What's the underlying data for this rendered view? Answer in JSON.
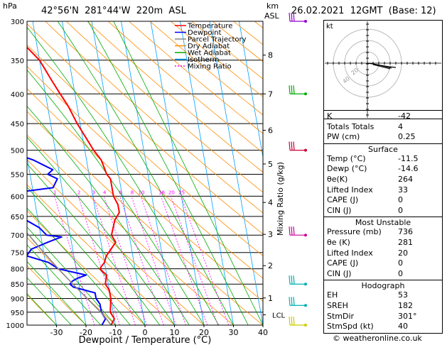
{
  "header": {
    "hpa_label": "hPa",
    "location": "42°56'N  281°44'W  220m  ASL",
    "km_label": "km",
    "asl_label": "ASL",
    "datetime": "26.02.2021  12GMT  (Base: 12)"
  },
  "legend": {
    "items": [
      {
        "label": "Temperature",
        "color": "#ff0000",
        "dash": "none"
      },
      {
        "label": "Dewpoint",
        "color": "#0000ff",
        "dash": "none"
      },
      {
        "label": "Parcel Trajectory",
        "color": "#888888",
        "dash": "none"
      },
      {
        "label": "Dry Adiabat",
        "color": "#ff8c00",
        "dash": "none"
      },
      {
        "label": "Wet Adiabat",
        "color": "#00aa00",
        "dash": "none"
      },
      {
        "label": "Isotherm",
        "color": "#00a0ff",
        "dash": "none"
      },
      {
        "label": "Mixing Ratio",
        "color": "#ff00ff",
        "dash": "2,2"
      }
    ]
  },
  "hodograph": {
    "kt_label": "kt",
    "ring_labels": [
      "20",
      "40"
    ]
  },
  "indices": {
    "top": [
      {
        "label": "K",
        "value": "-42"
      },
      {
        "label": "Totals Totals",
        "value": "4"
      },
      {
        "label": "PW (cm)",
        "value": "0.25"
      }
    ],
    "surface_title": "Surface",
    "surface": [
      {
        "label": "Temp (°C)",
        "value": "-11.5"
      },
      {
        "label": "Dewp (°C)",
        "value": "-14.6"
      },
      {
        "label": "θe(K)",
        "value": "264"
      },
      {
        "label": "Lifted Index",
        "value": "33"
      },
      {
        "label": "CAPE (J)",
        "value": "0"
      },
      {
        "label": "CIN (J)",
        "value": "0"
      }
    ],
    "unstable_title": "Most Unstable",
    "unstable": [
      {
        "label": "Pressure (mb)",
        "value": "736"
      },
      {
        "label": "θe (K)",
        "value": "281"
      },
      {
        "label": "Lifted Index",
        "value": "20"
      },
      {
        "label": "CAPE (J)",
        "value": "0"
      },
      {
        "label": "CIN (J)",
        "value": "0"
      }
    ],
    "hodo_title": "Hodograph",
    "hodo": [
      {
        "label": "EH",
        "value": "53"
      },
      {
        "label": "SREH",
        "value": "182"
      },
      {
        "label": "StmDir",
        "value": "301°"
      },
      {
        "label": "StmSpd (kt)",
        "value": "40"
      }
    ]
  },
  "footer": {
    "copyright": "© weatheronline.co.uk"
  },
  "chart_data": {
    "type": "line",
    "title": "",
    "xlabel": "Dewpoint / Temperature (°C)",
    "ylabel": "hPa",
    "y2label": "Mixing Ratio (g/kg)",
    "xlim": [
      -40,
      40
    ],
    "ylim": [
      1000,
      300
    ],
    "y_scale": "log",
    "grid": true,
    "legend_position": "top-left",
    "x_ticks": [
      -30,
      -20,
      -10,
      0,
      10,
      20,
      30,
      40
    ],
    "pressure_levels": [
      300,
      350,
      400,
      450,
      500,
      550,
      600,
      650,
      700,
      750,
      800,
      850,
      900,
      950,
      1000
    ],
    "km_ticks": [
      {
        "p": 898,
        "label": "1"
      },
      {
        "p": 790,
        "label": "2"
      },
      {
        "p": 698,
        "label": "3"
      },
      {
        "p": 615,
        "label": "4"
      },
      {
        "p": 528,
        "label": "5"
      },
      {
        "p": 462,
        "label": "6"
      },
      {
        "p": 400,
        "label": "7"
      },
      {
        "p": 343,
        "label": "8"
      }
    ],
    "lcl": {
      "p": 960,
      "label": "LCL"
    },
    "mixing_ratio_labels": [
      "1",
      "2",
      "3",
      "4",
      "6",
      "8",
      "10",
      "16",
      "20",
      "25"
    ],
    "mixing_ratio_values": [
      1,
      2,
      3,
      4,
      6,
      8,
      10,
      16,
      20,
      25
    ],
    "series": [
      {
        "name": "Temperature",
        "color": "#ff0000",
        "points": [
          [
            1000,
            -11.5
          ],
          [
            975,
            -10
          ],
          [
            950,
            -11
          ],
          [
            900,
            -10
          ],
          [
            870,
            -10
          ],
          [
            850,
            -11
          ],
          [
            820,
            -10
          ],
          [
            800,
            -12
          ],
          [
            780,
            -10
          ],
          [
            760,
            -9
          ],
          [
            740,
            -7
          ],
          [
            720,
            -5
          ],
          [
            700,
            -6
          ],
          [
            660,
            -4
          ],
          [
            640,
            -2
          ],
          [
            620,
            -2
          ],
          [
            600,
            -3
          ],
          [
            560,
            -3
          ],
          [
            550,
            -4
          ],
          [
            520,
            -5
          ],
          [
            500,
            -7
          ],
          [
            450,
            -11
          ],
          [
            420,
            -13
          ],
          [
            400,
            -15
          ],
          [
            380,
            -17
          ],
          [
            350,
            -20
          ],
          [
            330,
            -24
          ],
          [
            300,
            -30
          ]
        ]
      },
      {
        "name": "Dewpoint",
        "color": "#0000ff",
        "points": [
          [
            1000,
            -14.6
          ],
          [
            975,
            -13
          ],
          [
            950,
            -14
          ],
          [
            920,
            -14
          ],
          [
            900,
            -15
          ],
          [
            880,
            -15
          ],
          [
            860,
            -22
          ],
          [
            850,
            -23
          ],
          [
            840,
            -22
          ],
          [
            830,
            -20
          ],
          [
            820,
            -17
          ],
          [
            800,
            -26
          ],
          [
            780,
            -29
          ],
          [
            760,
            -36
          ],
          [
            740,
            -34
          ],
          [
            720,
            -28
          ],
          [
            705,
            -23
          ],
          [
            700,
            -28
          ],
          [
            680,
            -30
          ],
          [
            650,
            -36
          ],
          [
            630,
            -38
          ],
          [
            600,
            -46
          ],
          [
            580,
            -23
          ],
          [
            560,
            -21
          ],
          [
            550,
            -24
          ],
          [
            540,
            -22
          ],
          [
            530,
            -25
          ],
          [
            520,
            -28
          ],
          [
            500,
            -37
          ],
          [
            470,
            -37
          ],
          [
            460,
            -29
          ],
          [
            450,
            -28
          ],
          [
            430,
            -32
          ],
          [
            400,
            -38
          ],
          [
            380,
            -40
          ],
          [
            350,
            -55
          ],
          [
            330,
            -48
          ],
          [
            310,
            -48
          ],
          [
            300,
            -49
          ]
        ]
      },
      {
        "name": "Parcel Trajectory",
        "color": "#888888",
        "points": [
          [
            1000,
            -11.5
          ],
          [
            960,
            -13.5
          ],
          [
            900,
            -18
          ],
          [
            850,
            -22
          ],
          [
            800,
            -26
          ],
          [
            750,
            -30
          ],
          [
            700,
            -34
          ],
          [
            650,
            -39
          ],
          [
            600,
            -44
          ],
          [
            550,
            -50
          ],
          [
            500,
            -56
          ],
          [
            450,
            -62
          ],
          [
            400,
            -70
          ],
          [
            350,
            -78
          ],
          [
            300,
            -86
          ]
        ]
      }
    ],
    "wind_barbs": [
      {
        "p": 300,
        "color": "#9400d3"
      },
      {
        "p": 400,
        "color": "#00aa00"
      },
      {
        "p": 500,
        "color": "#cc0033"
      },
      {
        "p": 700,
        "color": "#cc0099"
      },
      {
        "p": 850,
        "color": "#00b0b0"
      },
      {
        "p": 925,
        "color": "#00b0b0"
      },
      {
        "p": 1000,
        "color": "#cccc00"
      }
    ]
  }
}
